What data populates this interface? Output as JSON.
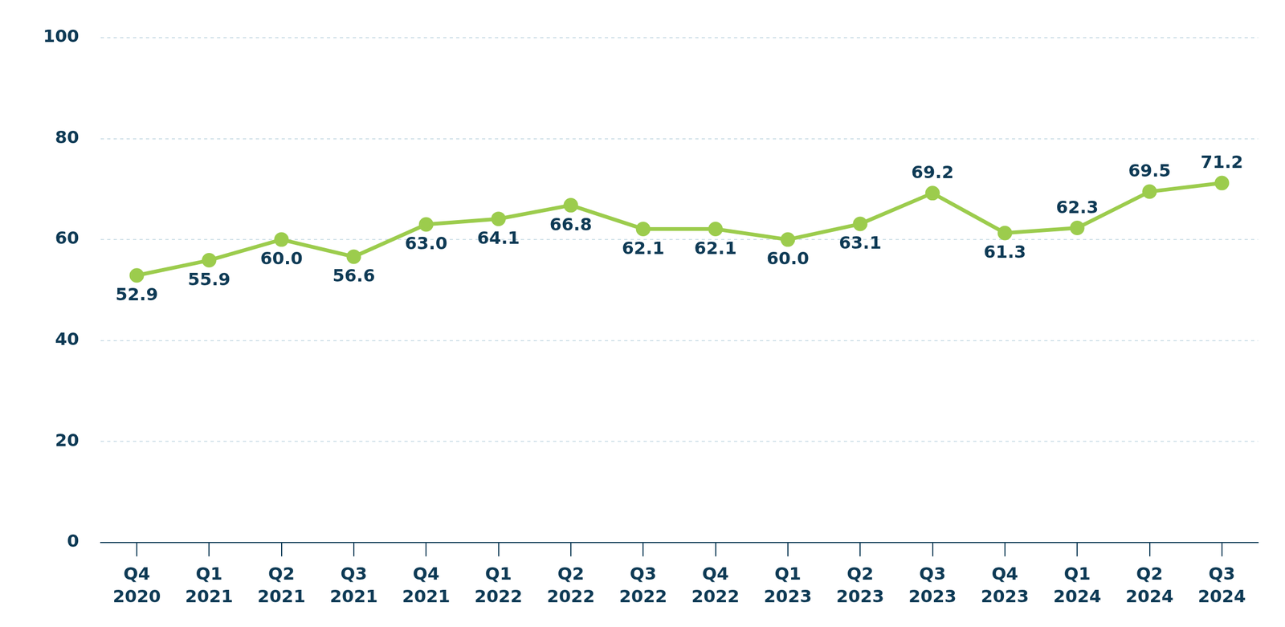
{
  "chart_data": {
    "type": "line",
    "categories": [
      "Q4 2020",
      "Q1 2021",
      "Q2 2021",
      "Q3 2021",
      "Q4 2021",
      "Q1 2022",
      "Q2 2022",
      "Q3 2022",
      "Q4 2022",
      "Q1 2023",
      "Q2 2023",
      "Q3 2023",
      "Q4 2023",
      "Q1 2024",
      "Q2 2024",
      "Q3 2024"
    ],
    "values": [
      52.9,
      55.9,
      60.0,
      56.6,
      63.0,
      64.1,
      66.8,
      62.1,
      62.1,
      60.0,
      63.1,
      69.2,
      61.3,
      62.3,
      69.5,
      71.2
    ],
    "value_labels": [
      "52.9",
      "55.9",
      "60.0",
      "56.6",
      "63.0",
      "64.1",
      "66.8",
      "62.1",
      "62.1",
      "60.0",
      "63.1",
      "69.2",
      "61.3",
      "62.3",
      "69.5",
      "71.2"
    ],
    "color": "#9ccc4d",
    "ylim": [
      0,
      100
    ],
    "yticks": [
      0,
      20,
      40,
      60,
      80,
      100
    ],
    "grid": true,
    "data_labels": true,
    "marker": "circle",
    "line_style": "solid"
  }
}
